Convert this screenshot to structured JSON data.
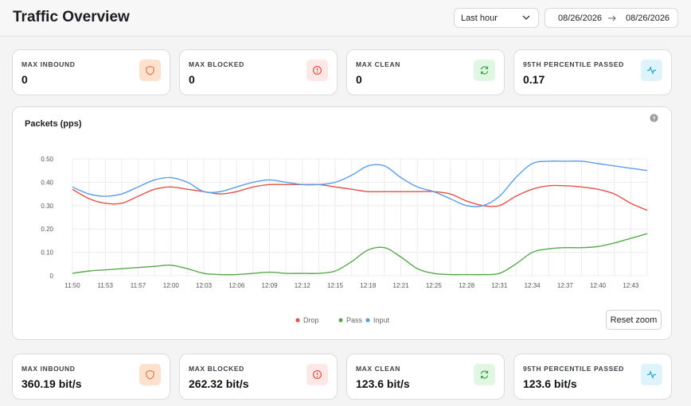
{
  "header": {
    "title": "Traffic Overview",
    "time_range": "Last hour",
    "date_from": "08/26/2026",
    "date_to": "08/26/2026"
  },
  "top_cards": [
    {
      "label": "MAX INBOUND",
      "value": "0",
      "icon": "shield-icon"
    },
    {
      "label": "MAX BLOCKED",
      "value": "0",
      "icon": "alert-circle-icon"
    },
    {
      "label": "MAX CLEAN",
      "value": "0",
      "icon": "refresh-icon"
    },
    {
      "label": "95TH PERCENTILE PASSED",
      "value": "0.17",
      "icon": "activity-icon"
    }
  ],
  "bottom_cards": [
    {
      "label": "MAX INBOUND",
      "value": "360.19 bit/s",
      "icon": "shield-icon"
    },
    {
      "label": "MAX BLOCKED",
      "value": "262.32 bit/s",
      "icon": "alert-circle-icon"
    },
    {
      "label": "MAX CLEAN",
      "value": "123.6 bit/s",
      "icon": "refresh-icon"
    },
    {
      "label": "95TH PERCENTILE PASSED",
      "value": "123.6 bit/s",
      "icon": "activity-icon"
    }
  ],
  "chart": {
    "title": "Packets (pps)",
    "reset_label": "Reset zoom"
  },
  "colors": {
    "drop": "#e0534a",
    "pass": "#5aa84f",
    "input": "#5b9ee6",
    "orange": "#e8793f",
    "red": "#e0534a",
    "green": "#3fa84a",
    "cyan": "#2aa6c9"
  },
  "chart_data": {
    "type": "line",
    "title": "Packets (pps)",
    "xlabel": "",
    "ylabel": "",
    "x": [
      "11:50",
      "11:52",
      "11:53",
      "11:55",
      "11:57",
      "11:58",
      "12:00",
      "12:02",
      "12:03",
      "12:05",
      "12:06",
      "12:08",
      "12:09",
      "12:11",
      "12:12",
      "12:14",
      "12:15",
      "12:17",
      "12:18",
      "12:20",
      "12:21",
      "12:23",
      "12:25",
      "12:27",
      "12:28",
      "12:30",
      "12:31",
      "12:33",
      "12:34",
      "12:36",
      "12:37",
      "12:39",
      "12:40",
      "12:42",
      "12:43",
      "12:45"
    ],
    "x_tick_labels": [
      "11:50",
      "11:53",
      "11:57",
      "12:00",
      "12:03",
      "12:06",
      "12:09",
      "12:12",
      "12:15",
      "12:18",
      "12:21",
      "12:25",
      "12:28",
      "12:31",
      "12:34",
      "12:37",
      "12:40",
      "12:43"
    ],
    "y_ticks": [
      "0",
      "0.10",
      "0.20",
      "0.30",
      "0.40",
      "0.50"
    ],
    "ylim": [
      0,
      0.5
    ],
    "grid": true,
    "legend": "bottom",
    "series": [
      {
        "name": "Drop",
        "values": [
          0.37,
          0.33,
          0.31,
          0.31,
          0.34,
          0.37,
          0.38,
          0.37,
          0.36,
          0.35,
          0.36,
          0.38,
          0.39,
          0.39,
          0.39,
          0.39,
          0.38,
          0.37,
          0.36,
          0.36,
          0.36,
          0.36,
          0.36,
          0.35,
          0.32,
          0.3,
          0.3,
          0.34,
          0.37,
          0.385,
          0.385,
          0.38,
          0.37,
          0.35,
          0.31,
          0.28
        ]
      },
      {
        "name": "Pass",
        "values": [
          0.01,
          0.02,
          0.025,
          0.03,
          0.035,
          0.04,
          0.045,
          0.03,
          0.01,
          0.005,
          0.005,
          0.01,
          0.015,
          0.01,
          0.01,
          0.01,
          0.02,
          0.06,
          0.11,
          0.12,
          0.08,
          0.03,
          0.01,
          0.005,
          0.005,
          0.005,
          0.01,
          0.05,
          0.1,
          0.115,
          0.12,
          0.12,
          0.125,
          0.14,
          0.16,
          0.18
        ]
      },
      {
        "name": "Input",
        "values": [
          0.38,
          0.35,
          0.34,
          0.35,
          0.38,
          0.41,
          0.42,
          0.4,
          0.36,
          0.36,
          0.38,
          0.4,
          0.41,
          0.4,
          0.39,
          0.39,
          0.4,
          0.43,
          0.47,
          0.47,
          0.42,
          0.38,
          0.36,
          0.33,
          0.3,
          0.3,
          0.34,
          0.42,
          0.48,
          0.49,
          0.49,
          0.49,
          0.48,
          0.47,
          0.46,
          0.45
        ]
      }
    ]
  }
}
